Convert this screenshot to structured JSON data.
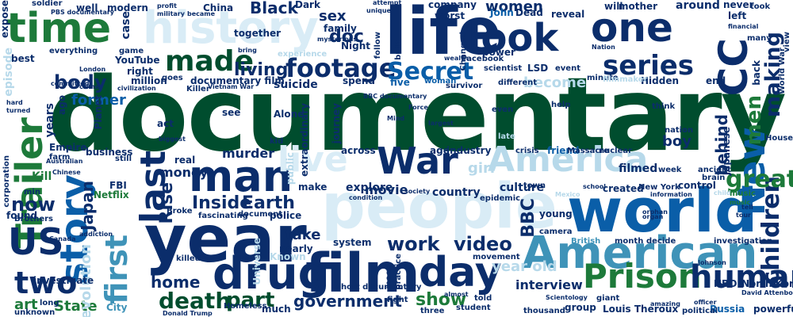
{
  "palette": {
    "dark_green": "#004d2e",
    "green": "#1d7a3a",
    "navy": "#0b2d6b",
    "blue": "#0a5ea8",
    "teal": "#3f93b8",
    "light": "#b7d9ea",
    "pale": "#d9ecf6"
  },
  "words": [
    {
      "text": "documentary",
      "color": "dark_green"
    },
    {
      "text": "world",
      "color": "blue"
    },
    {
      "text": "people",
      "color": "pale"
    },
    {
      "text": "year",
      "color": "navy"
    },
    {
      "text": "film",
      "color": "navy"
    },
    {
      "text": "life",
      "color": "navy"
    },
    {
      "text": "American",
      "color": "teal"
    },
    {
      "text": "man",
      "color": "navy"
    },
    {
      "text": "drug",
      "color": "navy"
    },
    {
      "text": "day",
      "color": "navy"
    },
    {
      "text": "story",
      "color": "blue"
    },
    {
      "text": "time",
      "color": "green"
    },
    {
      "text": "history",
      "color": "pale"
    },
    {
      "text": "look",
      "color": "navy"
    },
    {
      "text": "one",
      "color": "navy"
    },
    {
      "text": "America",
      "color": "light"
    },
    {
      "text": "Prison",
      "color": "green"
    },
    {
      "text": "human",
      "color": "navy"
    },
    {
      "text": "live",
      "color": "pale"
    },
    {
      "text": "War",
      "color": "navy"
    },
    {
      "text": "Trailer",
      "color": "green"
    },
    {
      "text": "US",
      "color": "navy"
    },
    {
      "text": "two",
      "color": "navy"
    },
    {
      "text": "first",
      "color": "teal"
    },
    {
      "text": "New",
      "color": "blue"
    },
    {
      "text": "CC",
      "color": "navy"
    },
    {
      "text": "last",
      "color": "navy"
    },
    {
      "text": "made",
      "color": "dark_green"
    },
    {
      "text": "footage",
      "color": "navy"
    },
    {
      "text": "series",
      "color": "navy"
    },
    {
      "text": "Secret",
      "color": "blue"
    },
    {
      "text": "children",
      "color": "navy"
    },
    {
      "text": "men",
      "color": "green"
    },
    {
      "text": "making",
      "color": "navy"
    },
    {
      "text": "great",
      "color": "green"
    },
    {
      "text": "death",
      "color": "dark_green"
    },
    {
      "text": "part",
      "color": "dark_green"
    },
    {
      "text": "body",
      "color": "navy"
    },
    {
      "text": "living",
      "color": "navy"
    },
    {
      "text": "work",
      "color": "navy"
    },
    {
      "text": "video",
      "color": "navy"
    },
    {
      "text": "show",
      "color": "green"
    },
    {
      "text": "government",
      "color": "navy"
    },
    {
      "text": "now",
      "color": "navy"
    },
    {
      "text": "home",
      "color": "navy"
    },
    {
      "text": "Inside",
      "color": "navy"
    },
    {
      "text": "Earth",
      "color": "navy"
    },
    {
      "text": "Rise",
      "color": "navy"
    },
    {
      "text": "Japan",
      "color": "navy"
    },
    {
      "text": "former",
      "color": "blue"
    },
    {
      "text": "become",
      "color": "light"
    },
    {
      "text": "boy",
      "color": "navy"
    },
    {
      "text": "girl",
      "color": "light"
    },
    {
      "text": "year old",
      "color": "light"
    },
    {
      "text": "money",
      "color": "navy"
    },
    {
      "text": "murder",
      "color": "navy"
    },
    {
      "text": "BBC",
      "color": "navy"
    },
    {
      "text": "Black",
      "color": "navy"
    },
    {
      "text": "doc",
      "color": "navy"
    },
    {
      "text": "family",
      "color": "navy"
    },
    {
      "text": "sex",
      "color": "navy"
    },
    {
      "text": "women",
      "color": "navy"
    },
    {
      "text": "State",
      "color": "green"
    },
    {
      "text": "art",
      "color": "green"
    },
    {
      "text": "interview",
      "color": "navy"
    },
    {
      "text": "evolution",
      "color": "light"
    },
    {
      "text": "Kill",
      "color": "green"
    },
    {
      "text": "episode",
      "color": "light"
    },
    {
      "text": "explore",
      "color": "navy"
    },
    {
      "text": "culture",
      "color": "navy"
    },
    {
      "text": "movie",
      "color": "navy"
    },
    {
      "text": "country",
      "color": "navy"
    },
    {
      "text": "take",
      "color": "navy"
    },
    {
      "text": "suicide",
      "color": "navy"
    },
    {
      "text": "behind",
      "color": "navy"
    },
    {
      "text": "filmed",
      "color": "navy"
    },
    {
      "text": "created",
      "color": "navy"
    },
    {
      "text": "control",
      "color": "navy"
    },
    {
      "text": "young",
      "color": "navy"
    },
    {
      "text": "Hidden",
      "color": "navy"
    },
    {
      "text": "end",
      "color": "navy"
    },
    {
      "text": "Louis Theroux",
      "color": "navy"
    },
    {
      "text": "powerful",
      "color": "navy"
    },
    {
      "text": "Russia",
      "color": "blue"
    },
    {
      "text": "HBO",
      "color": "navy"
    },
    {
      "text": "North Korea",
      "color": "navy"
    },
    {
      "text": "Netflix",
      "color": "green"
    },
    {
      "text": "FBI",
      "color": "navy"
    },
    {
      "text": "business",
      "color": "navy"
    },
    {
      "text": "Empire",
      "color": "navy"
    },
    {
      "text": "investigate",
      "color": "navy"
    },
    {
      "text": "found",
      "color": "navy"
    },
    {
      "text": "best",
      "color": "navy"
    },
    {
      "text": "YouTube",
      "color": "navy"
    },
    {
      "text": "million",
      "color": "navy"
    },
    {
      "text": "right",
      "color": "navy"
    },
    {
      "text": "case",
      "color": "navy"
    },
    {
      "text": "modern",
      "color": "navy"
    },
    {
      "text": "well",
      "color": "navy"
    },
    {
      "text": "soldier",
      "color": "navy"
    },
    {
      "text": "Dark",
      "color": "navy"
    },
    {
      "text": "company",
      "color": "navy"
    },
    {
      "text": "worst",
      "color": "navy"
    },
    {
      "text": "reveal",
      "color": "navy"
    },
    {
      "text": "around",
      "color": "navy"
    },
    {
      "text": "mother",
      "color": "navy"
    },
    {
      "text": "will",
      "color": "navy"
    },
    {
      "text": "never",
      "color": "navy"
    },
    {
      "text": "Night",
      "color": "navy"
    },
    {
      "text": "Facebook",
      "color": "navy"
    },
    {
      "text": "power",
      "color": "navy"
    },
    {
      "text": "five",
      "color": "blue"
    },
    {
      "text": "spend",
      "color": "navy"
    },
    {
      "text": "kid",
      "color": "navy"
    },
    {
      "text": "Alone",
      "color": "navy"
    },
    {
      "text": "nearly",
      "color": "navy"
    },
    {
      "text": "system",
      "color": "navy"
    },
    {
      "text": "police",
      "color": "navy"
    },
    {
      "text": "killed",
      "color": "navy"
    },
    {
      "text": "much",
      "color": "navy"
    },
    {
      "text": "Donald Trump",
      "color": "navy"
    },
    {
      "text": "unknown",
      "color": "navy"
    },
    {
      "text": "long",
      "color": "navy"
    },
    {
      "text": "City",
      "color": "teal"
    },
    {
      "text": "group",
      "color": "navy"
    },
    {
      "text": "thousand",
      "color": "navy"
    },
    {
      "text": "political",
      "color": "navy"
    },
    {
      "text": "month",
      "color": "navy"
    },
    {
      "text": "decide",
      "color": "navy"
    },
    {
      "text": "investigation",
      "color": "navy"
    },
    {
      "text": "week",
      "color": "navy"
    },
    {
      "text": "ancient",
      "color": "navy"
    },
    {
      "text": "brain",
      "color": "navy"
    },
    {
      "text": "music",
      "color": "green"
    },
    {
      "text": "New York",
      "color": "navy"
    },
    {
      "text": "nuclear",
      "color": "navy"
    },
    {
      "text": "crisis",
      "color": "navy"
    },
    {
      "text": "friend",
      "color": "blue"
    },
    {
      "text": "Massacre",
      "color": "navy"
    },
    {
      "text": "industry",
      "color": "navy"
    },
    {
      "text": "age",
      "color": "navy"
    },
    {
      "text": "across",
      "color": "navy"
    },
    {
      "text": "make",
      "color": "navy"
    },
    {
      "text": "real",
      "color": "navy"
    },
    {
      "text": "still",
      "color": "navy"
    },
    {
      "text": "min",
      "color": "navy"
    },
    {
      "text": "help",
      "color": "navy"
    },
    {
      "text": "think",
      "color": "navy"
    },
    {
      "text": "minute",
      "color": "navy"
    },
    {
      "text": "together",
      "color": "navy"
    },
    {
      "text": "experience",
      "color": "light"
    },
    {
      "text": "John",
      "color": "blue"
    },
    {
      "text": "Dead",
      "color": "navy"
    },
    {
      "text": "different",
      "color": "navy"
    },
    {
      "text": "scientist",
      "color": "navy"
    },
    {
      "text": "LSD",
      "color": "navy"
    },
    {
      "text": "event",
      "color": "navy"
    },
    {
      "text": "filmmaker",
      "color": "light"
    },
    {
      "text": "left",
      "color": "navy"
    },
    {
      "text": "back",
      "color": "navy"
    },
    {
      "text": "many",
      "color": "navy"
    },
    {
      "text": "ago",
      "color": "navy"
    },
    {
      "text": "years",
      "color": "navy"
    },
    {
      "text": "see",
      "color": "navy"
    },
    {
      "text": "Universe",
      "color": "light"
    },
    {
      "text": "journey",
      "color": "navy"
    },
    {
      "text": "extraordinary",
      "color": "navy"
    },
    {
      "text": "Planet",
      "color": "navy"
    },
    {
      "text": "act",
      "color": "navy"
    },
    {
      "text": "Killer",
      "color": "navy"
    },
    {
      "text": "civilization",
      "color": "navy"
    },
    {
      "text": "goes",
      "color": "navy"
    },
    {
      "text": "documentary film",
      "color": "navy"
    },
    {
      "text": "attempt",
      "color": "navy"
    },
    {
      "text": "expose",
      "color": "navy"
    },
    {
      "text": "game",
      "color": "navy"
    },
    {
      "text": "everything",
      "color": "navy"
    },
    {
      "text": "London",
      "color": "navy"
    },
    {
      "text": "China",
      "color": "navy"
    },
    {
      "text": "military",
      "color": "navy"
    },
    {
      "text": "became",
      "color": "navy"
    },
    {
      "text": "profit",
      "color": "navy"
    },
    {
      "text": "bring",
      "color": "navy"
    },
    {
      "text": "unique",
      "color": "navy"
    },
    {
      "text": "follow",
      "color": "navy"
    },
    {
      "text": "built",
      "color": "navy"
    },
    {
      "text": "Changed",
      "color": "navy"
    },
    {
      "text": "Face",
      "color": "navy"
    },
    {
      "text": "survivor",
      "color": "navy"
    },
    {
      "text": "woman",
      "color": "blue"
    },
    {
      "text": "Vietnam War",
      "color": "navy"
    },
    {
      "text": "World War",
      "color": "navy"
    },
    {
      "text": "view",
      "color": "navy"
    },
    {
      "text": "took",
      "color": "navy"
    },
    {
      "text": "financial",
      "color": "navy"
    },
    {
      "text": "Japanese",
      "color": "navy"
    },
    {
      "text": "nation",
      "color": "navy"
    },
    {
      "text": "BBC documentary",
      "color": "navy"
    },
    {
      "text": "epidemic",
      "color": "navy"
    },
    {
      "text": "town",
      "color": "navy"
    },
    {
      "text": "condition",
      "color": "navy"
    },
    {
      "text": "society",
      "color": "navy"
    },
    {
      "text": "camera",
      "color": "navy"
    },
    {
      "text": "British",
      "color": "teal"
    },
    {
      "text": "short documentary",
      "color": "navy"
    },
    {
      "text": "three",
      "color": "navy"
    },
    {
      "text": "student",
      "color": "navy"
    },
    {
      "text": "told",
      "color": "navy"
    },
    {
      "text": "meet",
      "color": "navy"
    },
    {
      "text": "practice",
      "color": "navy"
    },
    {
      "text": "movement",
      "color": "navy"
    },
    {
      "text": "Known",
      "color": "light"
    },
    {
      "text": "Homeless",
      "color": "navy"
    },
    {
      "text": "public",
      "color": "light"
    },
    {
      "text": "Brothers",
      "color": "navy"
    },
    {
      "text": "addiction",
      "color": "navy"
    },
    {
      "text": "Broke",
      "color": "navy"
    },
    {
      "text": "fascinating",
      "color": "navy"
    },
    {
      "text": "document",
      "color": "navy"
    },
    {
      "text": "biggest",
      "color": "navy"
    },
    {
      "text": "Chinese",
      "color": "navy"
    },
    {
      "text": "corporation",
      "color": "navy"
    },
    {
      "text": "Australian",
      "color": "navy"
    },
    {
      "text": "farm",
      "color": "navy"
    },
    {
      "text": "PBS documentary",
      "color": "navy"
    },
    {
      "text": "hard",
      "color": "navy"
    },
    {
      "text": "turned",
      "color": "navy"
    },
    {
      "text": "committed",
      "color": "navy"
    },
    {
      "text": "crime",
      "color": "navy"
    },
    {
      "text": "mysterious",
      "color": "navy"
    },
    {
      "text": "Force",
      "color": "navy"
    },
    {
      "text": "largest",
      "color": "navy"
    },
    {
      "text": "almost",
      "color": "navy"
    },
    {
      "text": "Johnson",
      "color": "navy"
    },
    {
      "text": "officer",
      "color": "navy"
    },
    {
      "text": "David Attenborough",
      "color": "navy"
    },
    {
      "text": "amazing",
      "color": "navy"
    },
    {
      "text": "Scientology",
      "color": "navy"
    },
    {
      "text": "giant",
      "color": "navy"
    },
    {
      "text": "Canada",
      "color": "navy"
    },
    {
      "text": "Mind",
      "color": "navy"
    },
    {
      "text": "fight",
      "color": "navy"
    },
    {
      "text": "Nation",
      "color": "navy"
    },
    {
      "text": "even",
      "color": "navy"
    },
    {
      "text": "late",
      "color": "light"
    },
    {
      "text": "orphan",
      "color": "navy"
    },
    {
      "text": "Mexico",
      "color": "light"
    },
    {
      "text": "information",
      "color": "navy"
    },
    {
      "text": "school",
      "color": "navy"
    },
    {
      "text": "tour",
      "color": "navy"
    },
    {
      "text": "tell",
      "color": "navy"
    },
    {
      "text": "child",
      "color": "light"
    },
    {
      "text": "House",
      "color": "navy"
    },
    {
      "text": "wealth",
      "color": "navy"
    },
    {
      "text": "organ",
      "color": "navy"
    },
    {
      "text": "India",
      "color": "navy"
    },
    {
      "text": "music",
      "color": "green"
    }
  ]
}
